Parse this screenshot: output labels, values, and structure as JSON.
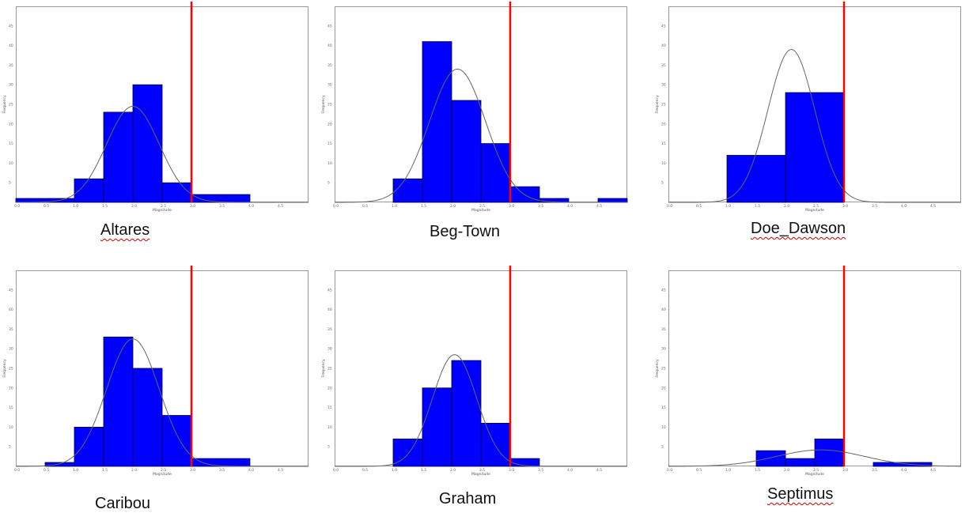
{
  "panels": [
    {
      "id": "altares",
      "caption": "Altares",
      "underline": true
    },
    {
      "id": "beg-town",
      "caption": "Beg-Town",
      "underline": false
    },
    {
      "id": "doe-dawson",
      "caption": "Doe_Dawson",
      "underline": true
    },
    {
      "id": "caribou",
      "caption": "Caribou",
      "underline": false
    },
    {
      "id": "graham",
      "caption": "Graham",
      "underline": false
    },
    {
      "id": "septimus",
      "caption": "Septimus",
      "underline": true
    }
  ],
  "colors": {
    "bar": "#0000ff",
    "threshold": "#ff0000",
    "curve": "#666666",
    "frame": "#999999"
  },
  "chart_data": [
    {
      "type": "bar",
      "title": "Altares",
      "xlabel": "Magnitude",
      "ylabel": "Frequency",
      "xlim": [
        0.0,
        5.0
      ],
      "ylim": [
        0,
        50
      ],
      "xticks": [
        0.0,
        0.5,
        1.0,
        1.5,
        2.0,
        2.5,
        3.0,
        3.5,
        4.0,
        4.5
      ],
      "yticks": [
        5,
        10,
        15,
        20,
        25,
        30,
        35,
        40,
        45
      ],
      "bins": [
        {
          "x0": 0.0,
          "x1": 1.0,
          "count": 1
        },
        {
          "x0": 1.0,
          "x1": 1.5,
          "count": 6
        },
        {
          "x0": 1.5,
          "x1": 2.0,
          "count": 23
        },
        {
          "x0": 2.0,
          "x1": 2.5,
          "count": 30
        },
        {
          "x0": 2.5,
          "x1": 3.0,
          "count": 5
        },
        {
          "x0": 3.0,
          "x1": 4.0,
          "count": 2
        }
      ],
      "normal_curve": {
        "mean": 2.0,
        "sd": 0.45,
        "peak": 24.5
      },
      "threshold_x": 3.0
    },
    {
      "type": "bar",
      "title": "Beg-Town",
      "xlabel": "Magnitude",
      "ylabel": "Frequency",
      "xlim": [
        0.0,
        5.0
      ],
      "ylim": [
        0,
        50
      ],
      "xticks": [
        0.0,
        0.5,
        1.0,
        1.5,
        2.0,
        2.5,
        3.0,
        3.5,
        4.0,
        4.5
      ],
      "yticks": [
        5,
        10,
        15,
        20,
        25,
        30,
        35,
        40,
        45
      ],
      "bins": [
        {
          "x0": 1.0,
          "x1": 1.5,
          "count": 6
        },
        {
          "x0": 1.5,
          "x1": 2.0,
          "count": 41
        },
        {
          "x0": 2.0,
          "x1": 2.5,
          "count": 26
        },
        {
          "x0": 2.5,
          "x1": 3.0,
          "count": 15
        },
        {
          "x0": 3.0,
          "x1": 3.5,
          "count": 4
        },
        {
          "x0": 3.5,
          "x1": 4.0,
          "count": 1
        },
        {
          "x0": 4.5,
          "x1": 5.0,
          "count": 1
        }
      ],
      "normal_curve": {
        "mean": 2.1,
        "sd": 0.48,
        "peak": 34
      },
      "threshold_x": 3.0
    },
    {
      "type": "bar",
      "title": "Doe_Dawson",
      "xlabel": "Magnitude",
      "ylabel": "Frequency",
      "xlim": [
        0.0,
        5.0
      ],
      "ylim": [
        0,
        50
      ],
      "xticks": [
        0.0,
        0.5,
        1.0,
        1.5,
        2.0,
        2.5,
        3.0,
        3.5,
        4.0,
        4.5
      ],
      "yticks": [
        5,
        10,
        15,
        20,
        25,
        30,
        35,
        40,
        45
      ],
      "bins": [
        {
          "x0": 1.0,
          "x1": 2.0,
          "count": 12
        },
        {
          "x0": 2.0,
          "x1": 3.0,
          "count": 28
        }
      ],
      "normal_curve": {
        "mean": 2.1,
        "sd": 0.4,
        "peak": 39
      },
      "threshold_x": 3.0
    },
    {
      "type": "bar",
      "title": "Caribou",
      "xlabel": "Magnitude",
      "ylabel": "Frequency",
      "xlim": [
        0.0,
        5.0
      ],
      "ylim": [
        0,
        50
      ],
      "xticks": [
        0.0,
        0.5,
        1.0,
        1.5,
        2.0,
        2.5,
        3.0,
        3.5,
        4.0,
        4.5
      ],
      "yticks": [
        5,
        10,
        15,
        20,
        25,
        30,
        35,
        40,
        45
      ],
      "bins": [
        {
          "x0": 0.5,
          "x1": 1.0,
          "count": 1
        },
        {
          "x0": 1.0,
          "x1": 1.5,
          "count": 10
        },
        {
          "x0": 1.5,
          "x1": 2.0,
          "count": 33
        },
        {
          "x0": 2.0,
          "x1": 2.5,
          "count": 25
        },
        {
          "x0": 2.5,
          "x1": 3.0,
          "count": 13
        },
        {
          "x0": 3.0,
          "x1": 4.0,
          "count": 2
        }
      ],
      "normal_curve": {
        "mean": 2.0,
        "sd": 0.45,
        "peak": 32.5
      },
      "threshold_x": 3.0
    },
    {
      "type": "bar",
      "title": "Graham",
      "xlabel": "Magnitude",
      "ylabel": "Frequency",
      "xlim": [
        0.0,
        5.0
      ],
      "ylim": [
        0,
        50
      ],
      "xticks": [
        0.0,
        0.5,
        1.0,
        1.5,
        2.0,
        2.5,
        3.0,
        3.5,
        4.0,
        4.5
      ],
      "yticks": [
        5,
        10,
        15,
        20,
        25,
        30,
        35,
        40,
        45
      ],
      "bins": [
        {
          "x0": 1.0,
          "x1": 1.5,
          "count": 7
        },
        {
          "x0": 1.5,
          "x1": 2.0,
          "count": 20
        },
        {
          "x0": 2.0,
          "x1": 2.5,
          "count": 27
        },
        {
          "x0": 2.5,
          "x1": 3.0,
          "count": 11
        },
        {
          "x0": 3.0,
          "x1": 3.5,
          "count": 2
        }
      ],
      "normal_curve": {
        "mean": 2.05,
        "sd": 0.38,
        "peak": 28.5
      },
      "threshold_x": 3.0
    },
    {
      "type": "bar",
      "title": "Septimus",
      "xlabel": "Magnitude",
      "ylabel": "Frequency",
      "xlim": [
        0.0,
        5.0
      ],
      "ylim": [
        0,
        50
      ],
      "xticks": [
        0.0,
        0.5,
        1.0,
        1.5,
        2.0,
        2.5,
        3.0,
        3.5,
        4.0,
        4.5
      ],
      "yticks": [
        5,
        10,
        15,
        20,
        25,
        30,
        35,
        40,
        45
      ],
      "bins": [
        {
          "x0": 1.5,
          "x1": 2.0,
          "count": 4
        },
        {
          "x0": 2.0,
          "x1": 2.5,
          "count": 2
        },
        {
          "x0": 2.5,
          "x1": 3.0,
          "count": 7
        },
        {
          "x0": 3.5,
          "x1": 4.5,
          "count": 1
        }
      ],
      "normal_curve": {
        "mean": 2.6,
        "sd": 0.75,
        "peak": 4.2
      },
      "threshold_x": 3.0
    }
  ]
}
